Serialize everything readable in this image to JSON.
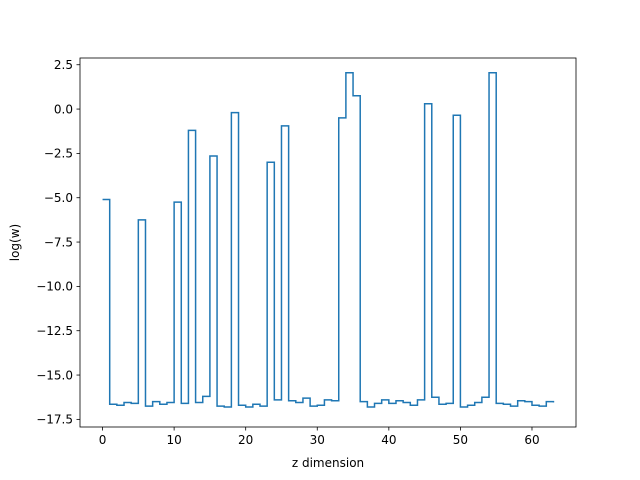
{
  "chart_data": {
    "type": "line",
    "drawstyle": "steps-post",
    "xlabel": "z dimension",
    "ylabel": "log(w)",
    "xlim": [
      -3.15,
      66.15
    ],
    "ylim": [
      -17.93,
      2.88
    ],
    "xticks": [
      0,
      10,
      20,
      30,
      40,
      50,
      60
    ],
    "xtick_labels": [
      "0",
      "10",
      "20",
      "30",
      "40",
      "50",
      "60"
    ],
    "yticks": [
      2.5,
      0.0,
      -2.5,
      -5.0,
      -7.5,
      -10.0,
      -12.5,
      -15.0,
      -17.5
    ],
    "ytick_labels": [
      "2.5",
      "0.0",
      "−2.5",
      "−5.0",
      "−7.5",
      "−10.0",
      "−12.5",
      "−15.0",
      "−17.5"
    ],
    "grid": false,
    "series": [
      {
        "color": "#1f77b4",
        "x": [
          0,
          1,
          2,
          3,
          4,
          5,
          6,
          7,
          8,
          9,
          10,
          11,
          12,
          13,
          14,
          15,
          16,
          17,
          18,
          19,
          20,
          21,
          22,
          23,
          24,
          25,
          26,
          27,
          28,
          29,
          30,
          31,
          32,
          33,
          34,
          35,
          36,
          37,
          38,
          39,
          40,
          41,
          42,
          43,
          44,
          45,
          46,
          47,
          48,
          49,
          50,
          51,
          52,
          53,
          54,
          55,
          56,
          57,
          58,
          59,
          60,
          61,
          62,
          63
        ],
        "values": [
          -5.1,
          -16.65,
          -16.7,
          -16.55,
          -16.6,
          -6.25,
          -16.75,
          -16.5,
          -16.65,
          -16.55,
          -5.25,
          -16.6,
          -1.2,
          -16.55,
          -16.2,
          -2.65,
          -16.75,
          -16.8,
          -0.2,
          -16.7,
          -16.8,
          -16.65,
          -16.75,
          -3.0,
          -16.4,
          -0.95,
          -16.45,
          -16.55,
          -16.3,
          -16.75,
          -16.7,
          -16.4,
          -16.45,
          -0.5,
          2.05,
          0.75,
          -16.5,
          -16.8,
          -16.6,
          -16.4,
          -16.6,
          -16.45,
          -16.55,
          -16.7,
          -16.4,
          0.3,
          -16.25,
          -16.65,
          -16.6,
          -0.35,
          -16.8,
          -16.7,
          -16.55,
          -16.25,
          2.05,
          -16.6,
          -16.65,
          -16.75,
          -16.45,
          -16.5,
          -16.7,
          -16.75,
          -16.5,
          -16.55
        ]
      }
    ]
  }
}
